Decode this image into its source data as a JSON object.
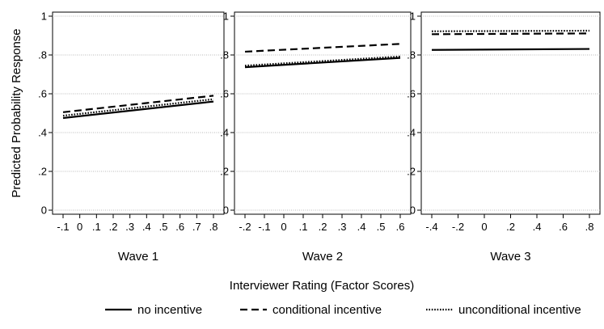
{
  "chart_data": {
    "type": "line",
    "ylabel": "Predicted Probability Response",
    "xlabel": "Interviewer Rating (Factor Scores)",
    "ylim": [
      0,
      1
    ],
    "yticks": [
      "0",
      ".2",
      ".4",
      ".6",
      ".8",
      "1"
    ],
    "grid": true,
    "legend_position": "bottom",
    "series_styles": [
      {
        "name": "no incentive",
        "dash": "solid"
      },
      {
        "name": "conditional incentive",
        "dash": "dashed"
      },
      {
        "name": "unconditional incentive",
        "dash": "dotted"
      }
    ],
    "panels": [
      {
        "title": "Wave 1",
        "xlim": [
          -0.1,
          0.8
        ],
        "xticks": [
          "-.1",
          "0",
          ".1",
          ".2",
          ".3",
          ".4",
          ".5",
          ".6",
          ".7",
          ".8"
        ],
        "series": [
          {
            "name": "no incentive",
            "x": [
              -0.1,
              0.8
            ],
            "y": [
              0.475,
              0.56
            ]
          },
          {
            "name": "conditional incentive",
            "x": [
              -0.1,
              0.8
            ],
            "y": [
              0.505,
              0.59
            ]
          },
          {
            "name": "unconditional incentive",
            "x": [
              -0.1,
              0.8
            ],
            "y": [
              0.487,
              0.572
            ]
          }
        ]
      },
      {
        "title": "Wave 2",
        "xlim": [
          -0.2,
          0.6
        ],
        "xticks": [
          "-.2",
          "-.1",
          "0",
          ".1",
          ".2",
          ".3",
          ".4",
          ".5",
          ".6"
        ],
        "series": [
          {
            "name": "no incentive",
            "x": [
              -0.2,
              0.6
            ],
            "y": [
              0.737,
              0.785
            ]
          },
          {
            "name": "conditional incentive",
            "x": [
              -0.2,
              0.6
            ],
            "y": [
              0.817,
              0.857
            ]
          },
          {
            "name": "unconditional incentive",
            "x": [
              -0.2,
              0.6
            ],
            "y": [
              0.745,
              0.792
            ]
          }
        ]
      },
      {
        "title": "Wave 3",
        "xlim": [
          -0.4,
          0.8
        ],
        "xticks": [
          "-.4",
          "-.2",
          "0",
          ".2",
          ".4",
          ".6",
          ".8"
        ],
        "series": [
          {
            "name": "no incentive",
            "x": [
              -0.4,
              0.8
            ],
            "y": [
              0.826,
              0.831
            ]
          },
          {
            "name": "conditional incentive",
            "x": [
              -0.4,
              0.8
            ],
            "y": [
              0.907,
              0.911
            ]
          },
          {
            "name": "unconditional incentive",
            "x": [
              -0.4,
              0.8
            ],
            "y": [
              0.922,
              0.925
            ]
          }
        ]
      }
    ]
  }
}
